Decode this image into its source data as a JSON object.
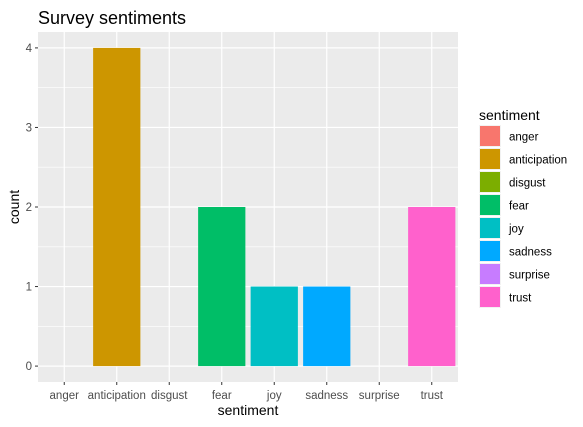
{
  "chart_data": {
    "type": "bar",
    "title": "Survey sentiments",
    "xlabel": "sentiment",
    "ylabel": "count",
    "categories": [
      "anger",
      "anticipation",
      "disgust",
      "fear",
      "joy",
      "sadness",
      "surprise",
      "trust"
    ],
    "values": [
      0,
      4,
      0,
      2,
      1,
      1,
      0,
      2
    ],
    "colors": [
      "#F8766D",
      "#CD9600",
      "#7CAE00",
      "#00BE67",
      "#00BFC4",
      "#00A9FF",
      "#C77CFF",
      "#FF61CC"
    ],
    "ylim": [
      -0.2,
      4.2
    ],
    "yticks": [
      "0",
      "1",
      "2",
      "3",
      "4"
    ],
    "grid": true,
    "legend": {
      "title": "sentiment",
      "position": "right",
      "entries": [
        "anger",
        "anticipation",
        "disgust",
        "fear",
        "joy",
        "sadness",
        "surprise",
        "trust"
      ]
    }
  }
}
